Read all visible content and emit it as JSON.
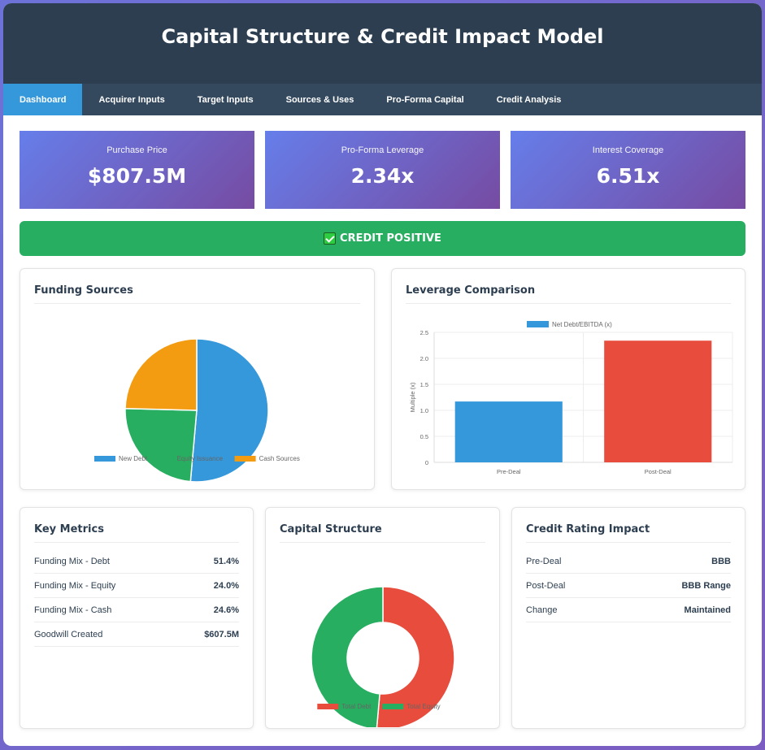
{
  "header": {
    "title": "Capital Structure & Credit Impact Model"
  },
  "tabs": [
    "Dashboard",
    "Acquirer Inputs",
    "Target Inputs",
    "Sources & Uses",
    "Pro-Forma Capital",
    "Credit Analysis"
  ],
  "kpis": [
    {
      "label": "Purchase Price",
      "value": "$807.5M"
    },
    {
      "label": "Pro-Forma Leverage",
      "value": "2.34x"
    },
    {
      "label": "Interest Coverage",
      "value": "6.51x"
    }
  ],
  "banner": {
    "text": "CREDIT POSITIVE"
  },
  "colors": {
    "blue": "#3498db",
    "green": "#27ae60",
    "orange": "#f39c12",
    "red": "#e74c3c",
    "header": "#2c3e50"
  },
  "chart_data": [
    {
      "type": "pie",
      "title": "Funding Sources",
      "categories": [
        "New Debt",
        "Equity Issuance",
        "Cash Sources"
      ],
      "values": [
        51.4,
        24.0,
        24.6
      ],
      "colors": [
        "#3498db",
        "#27ae60",
        "#f39c12"
      ]
    },
    {
      "type": "bar",
      "title": "Leverage Comparison",
      "categories": [
        "Pre-Deal",
        "Post-Deal"
      ],
      "series": [
        {
          "name": "Net Debt/EBITDA (x)",
          "values": [
            1.17,
            2.34
          ]
        }
      ],
      "colors": [
        "#3498db",
        "#e74c3c"
      ],
      "xlabel": "",
      "ylabel": "Multiple (x)",
      "ylim": [
        0,
        2.5
      ],
      "yticks": [
        "0",
        "0.5",
        "1.0",
        "1.5",
        "2.0",
        "2.5"
      ]
    },
    {
      "type": "pie",
      "title": "Capital Structure",
      "categories": [
        "Total Debt",
        "Total Equity"
      ],
      "values": [
        51.4,
        48.6
      ],
      "colors": [
        "#e74c3c",
        "#27ae60"
      ]
    }
  ],
  "key_metrics": {
    "title": "Key Metrics",
    "rows": [
      {
        "label": "Funding Mix - Debt",
        "value": "51.4%"
      },
      {
        "label": "Funding Mix - Equity",
        "value": "24.0%"
      },
      {
        "label": "Funding Mix - Cash",
        "value": "24.6%"
      },
      {
        "label": "Goodwill Created",
        "value": "$607.5M"
      }
    ]
  },
  "credit_rating": {
    "title": "Credit Rating Impact",
    "rows": [
      {
        "label": "Pre-Deal",
        "value": "BBB"
      },
      {
        "label": "Post-Deal",
        "value": "BBB Range"
      },
      {
        "label": "Change",
        "value": "Maintained"
      }
    ]
  }
}
